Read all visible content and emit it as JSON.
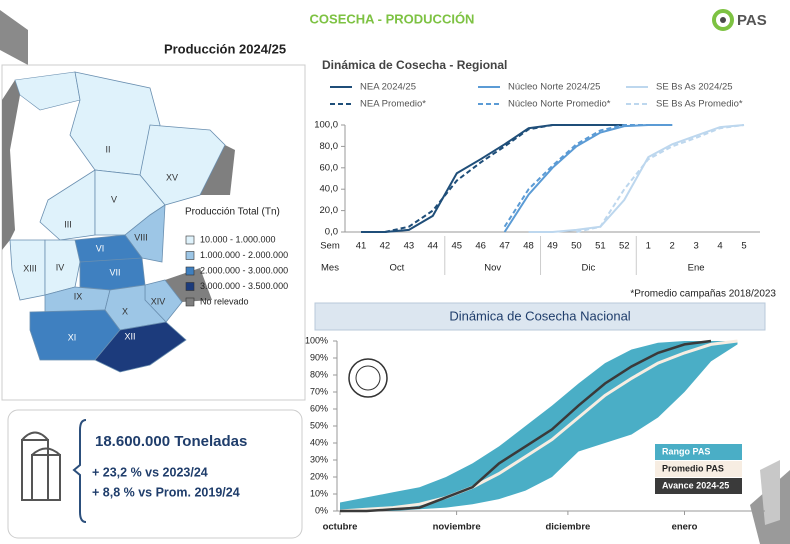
{
  "header": {
    "title": "COSECHA - PRODUCCIÓN",
    "logo": "PAS"
  },
  "map": {
    "title": "Producción 2024/25",
    "legend": {
      "title": "Producción Total  (Tn)",
      "items": [
        {
          "label": "10.000 - 1.000.000",
          "color": "#dff2fb"
        },
        {
          "label": "1.000.000 - 2.000.000",
          "color": "#9dc6e6"
        },
        {
          "label": "2.000.000 - 3.000.000",
          "color": "#3f80c0"
        },
        {
          "label": "3.000.000 - 3.500.000",
          "color": "#1c3b7c"
        },
        {
          "label": "No relevado",
          "color": "#7f7f7f"
        }
      ]
    },
    "regions": [
      {
        "label": "II",
        "class": 0
      },
      {
        "label": "XV",
        "class": 0
      },
      {
        "label": "III",
        "class": 0
      },
      {
        "label": "V",
        "class": 0
      },
      {
        "label": "VIII",
        "class": 1
      },
      {
        "label": "VI",
        "class": 2
      },
      {
        "label": "XIII",
        "class": 0
      },
      {
        "label": "IV",
        "class": 0
      },
      {
        "label": "VII",
        "class": 2
      },
      {
        "label": "IX",
        "class": 1
      },
      {
        "label": "XIV",
        "class": 1
      },
      {
        "label": "X",
        "class": 1
      },
      {
        "label": "XI",
        "class": 2
      },
      {
        "label": "XII",
        "class": 3
      }
    ]
  },
  "summary": {
    "total": "18.600.000 Toneladas",
    "lines": [
      "+ 23,2 % vs 2023/24",
      "+ 8,8 % vs Prom. 2019/24"
    ]
  },
  "chart_data": [
    {
      "type": "line",
      "title": "Dinámica de Cosecha - Regional",
      "categories": [
        "41",
        "42",
        "43",
        "44",
        "45",
        "46",
        "47",
        "48",
        "49",
        "50",
        "51",
        "52",
        "1",
        "2",
        "3",
        "4",
        "5"
      ],
      "x_label": "Sem",
      "month_axis_label": "Mes",
      "months": [
        "Oct",
        "Nov",
        "Dic",
        "Ene"
      ],
      "ylim": [
        0,
        100
      ],
      "yticks": [
        {
          "value": 0,
          "label": "0,0"
        },
        {
          "value": 20,
          "label": "20,0"
        },
        {
          "value": 40,
          "label": "40,0"
        },
        {
          "value": 60,
          "label": "60,0"
        },
        {
          "value": 80,
          "label": "80,0"
        },
        {
          "value": 100,
          "label": "100,0"
        }
      ],
      "annotation": "*Promedio campañas 2018/2023",
      "series": [
        {
          "name": "NEA 2024/25",
          "color": "#1f4e79",
          "dashed": false,
          "values": [
            0,
            0,
            2,
            15,
            55,
            68,
            82,
            97,
            100,
            100,
            100,
            100,
            null,
            null,
            null,
            null,
            null
          ]
        },
        {
          "name": "Núcleo Norte 2024/25",
          "color": "#5b9bd5",
          "dashed": false,
          "values": [
            null,
            null,
            null,
            null,
            null,
            null,
            0,
            35,
            60,
            80,
            93,
            99,
            100,
            100,
            null,
            null,
            null
          ]
        },
        {
          "name": "SE Bs As 2024/25",
          "color": "#bdd7ee",
          "dashed": false,
          "values": [
            null,
            null,
            null,
            null,
            null,
            null,
            null,
            0,
            0,
            2,
            5,
            30,
            70,
            82,
            90,
            98,
            100
          ]
        },
        {
          "name": "NEA Promedio*",
          "color": "#1f4e79",
          "dashed": true,
          "values": [
            0,
            0,
            5,
            20,
            48,
            65,
            80,
            96,
            100,
            100,
            100,
            100,
            null,
            null,
            null,
            null,
            null
          ]
        },
        {
          "name": "Núcleo Norte Promedio*",
          "color": "#5b9bd5",
          "dashed": true,
          "values": [
            null,
            null,
            null,
            null,
            null,
            null,
            5,
            40,
            62,
            82,
            95,
            100,
            100,
            100,
            null,
            null,
            null
          ]
        },
        {
          "name": "SE Bs As Promedio*",
          "color": "#bdd7ee",
          "dashed": true,
          "values": [
            null,
            null,
            null,
            null,
            null,
            null,
            null,
            null,
            null,
            0,
            5,
            40,
            68,
            80,
            88,
            97,
            100
          ]
        }
      ]
    },
    {
      "type": "area",
      "title": "Dinámica de Cosecha Nacional",
      "x": [
        0,
        1,
        2,
        3,
        4,
        5,
        6,
        7,
        8,
        9,
        10,
        11,
        12,
        13,
        14,
        15
      ],
      "xlim": [
        0,
        16
      ],
      "xticks": [
        {
          "value": 0,
          "label": "octubre"
        },
        {
          "value": 4.4,
          "label": "noviembre"
        },
        {
          "value": 8.6,
          "label": "diciembre"
        },
        {
          "value": 13,
          "label": "enero"
        }
      ],
      "ylim": [
        0,
        100
      ],
      "yticks": [
        {
          "value": 0,
          "label": "0%"
        },
        {
          "value": 10,
          "label": "10%"
        },
        {
          "value": 20,
          "label": "20%"
        },
        {
          "value": 30,
          "label": "30%"
        },
        {
          "value": 40,
          "label": "40%"
        },
        {
          "value": 50,
          "label": "50%"
        },
        {
          "value": 60,
          "label": "60%"
        },
        {
          "value": 70,
          "label": "70%"
        },
        {
          "value": 80,
          "label": "80%"
        },
        {
          "value": 90,
          "label": "90%"
        },
        {
          "value": 100,
          "label": "100%"
        }
      ],
      "series": [
        {
          "name": "Rango PAS",
          "color": "#4aaec6",
          "values": [
            0,
            0,
            0,
            1,
            2,
            4,
            7,
            12,
            20,
            35,
            40,
            45,
            55,
            70,
            88,
            98
          ],
          "values_high": [
            5,
            8,
            11,
            14,
            20,
            28,
            38,
            50,
            62,
            75,
            87,
            95,
            99,
            100,
            100,
            100
          ]
        },
        {
          "name": "Promedio PAS",
          "color": "#f7ede2",
          "values": [
            0,
            1,
            2,
            4,
            8,
            14,
            22,
            32,
            42,
            55,
            68,
            78,
            87,
            93,
            98,
            100
          ]
        },
        {
          "name": "Avance 2024-25",
          "color": "#3a3a3a",
          "values": [
            0,
            0,
            1,
            2,
            8,
            14,
            28,
            38,
            48,
            62,
            75,
            85,
            93,
            98,
            100,
            null
          ]
        }
      ]
    }
  ]
}
